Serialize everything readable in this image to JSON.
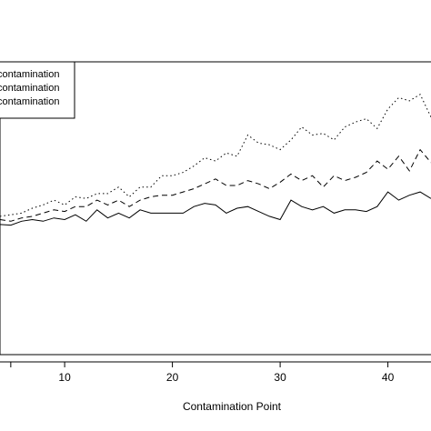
{
  "chart_data": {
    "type": "line",
    "title": "",
    "xlabel": "Contamination Point",
    "ylabel": "",
    "xlim": [
      4,
      44
    ],
    "ylim": [
      0.1,
      1.0
    ],
    "x_ticks": [
      10,
      20,
      30,
      40
    ],
    "x_tick_labels": [
      "10",
      "20",
      "30",
      "40"
    ],
    "grid": false,
    "legend": {
      "placement": "top-left",
      "entries": [
        {
          "label": "contamination",
          "line_style": "solid"
        },
        {
          "label": "contamination",
          "line_style": "dashed"
        },
        {
          "label": "contamination",
          "line_style": "dotted"
        }
      ]
    },
    "x": [
      4,
      5,
      6,
      7,
      8,
      9,
      10,
      11,
      12,
      13,
      14,
      15,
      16,
      17,
      18,
      19,
      20,
      21,
      22,
      23,
      24,
      25,
      26,
      27,
      28,
      29,
      30,
      31,
      32,
      33,
      34,
      35,
      36,
      37,
      38,
      39,
      40,
      41,
      42,
      43,
      44
    ],
    "series": [
      {
        "line_style": "solid",
        "values": [
          0.5,
          0.498,
          0.51,
          0.515,
          0.51,
          0.52,
          0.515,
          0.53,
          0.51,
          0.545,
          0.52,
          0.535,
          0.52,
          0.545,
          0.535,
          0.535,
          0.535,
          0.535,
          0.555,
          0.565,
          0.56,
          0.535,
          0.55,
          0.555,
          0.54,
          0.525,
          0.515,
          0.575,
          0.555,
          0.545,
          0.555,
          0.535,
          0.545,
          0.545,
          0.54,
          0.555,
          0.6,
          0.575,
          0.59,
          0.6,
          0.58
        ]
      },
      {
        "line_style": "dashed",
        "values": [
          0.515,
          0.51,
          0.52,
          0.525,
          0.535,
          0.545,
          0.54,
          0.555,
          0.555,
          0.575,
          0.56,
          0.575,
          0.555,
          0.575,
          0.585,
          0.59,
          0.59,
          0.6,
          0.61,
          0.625,
          0.64,
          0.62,
          0.62,
          0.635,
          0.625,
          0.61,
          0.63,
          0.655,
          0.635,
          0.65,
          0.615,
          0.65,
          0.635,
          0.645,
          0.66,
          0.695,
          0.67,
          0.71,
          0.665,
          0.73,
          0.69
        ]
      },
      {
        "line_style": "dotted",
        "values": [
          0.525,
          0.53,
          0.535,
          0.55,
          0.56,
          0.575,
          0.56,
          0.585,
          0.58,
          0.595,
          0.595,
          0.615,
          0.585,
          0.615,
          0.615,
          0.65,
          0.65,
          0.66,
          0.68,
          0.705,
          0.695,
          0.72,
          0.71,
          0.775,
          0.75,
          0.745,
          0.73,
          0.76,
          0.8,
          0.775,
          0.78,
          0.76,
          0.8,
          0.815,
          0.825,
          0.795,
          0.855,
          0.89,
          0.88,
          0.9,
          0.83
        ]
      }
    ]
  }
}
